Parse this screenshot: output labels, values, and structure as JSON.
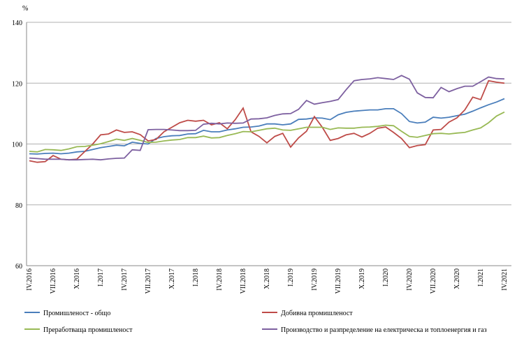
{
  "chart_data": {
    "type": "line",
    "y_label": "%",
    "categories": [
      "IV.2016",
      null,
      null,
      "VII.2016",
      null,
      null,
      "X.2016",
      null,
      null,
      "I.2017",
      null,
      null,
      "IV.2017",
      null,
      null,
      "VII.2017",
      null,
      null,
      "X.2017",
      null,
      null,
      "I.2018",
      null,
      null,
      "IV.2018",
      null,
      null,
      "VII.2018",
      null,
      null,
      "X.2018",
      null,
      null,
      "I.2019",
      null,
      null,
      "IV.2019",
      null,
      null,
      "VII.2019",
      null,
      null,
      "X.2019",
      null,
      null,
      "I.2020",
      null,
      null,
      "IV.2020",
      null,
      null,
      "VII.2020",
      null,
      null,
      "X.2020",
      null,
      null,
      "I.2021",
      null,
      null,
      "IV.2021"
    ],
    "series": [
      {
        "name": "Промишленост - общо",
        "color": "#4a7ebb",
        "values": [
          96.8,
          96.7,
          96.9,
          97.0,
          96.8,
          97.0,
          97.4,
          97.6,
          98.2,
          98.8,
          99.2,
          99.6,
          99.4,
          100.6,
          100.2,
          100.0,
          101.8,
          102.4,
          102.7,
          102.8,
          103.3,
          103.4,
          104.5,
          104.0,
          104.0,
          104.6,
          105.0,
          105.5,
          105.6,
          105.9,
          106.6,
          106.6,
          106.3,
          106.6,
          108.1,
          108.2,
          108.6,
          108.5,
          108.0,
          109.6,
          110.4,
          110.8,
          111.0,
          111.2,
          111.2,
          111.6,
          111.6,
          110.0,
          107.4,
          106.9,
          107.2,
          108.8,
          108.5,
          108.8,
          109.3,
          109.8,
          110.8,
          111.9,
          112.9,
          113.8,
          114.9
        ]
      },
      {
        "name": "Добивна промишленост",
        "color": "#be4b48",
        "values": [
          94.5,
          94.0,
          94.2,
          96.2,
          95.0,
          94.8,
          95.0,
          97.5,
          100.0,
          103.0,
          103.3,
          104.6,
          103.8,
          104.0,
          103.1,
          101.0,
          101.5,
          104.0,
          105.5,
          107.0,
          107.8,
          107.5,
          107.8,
          106.3,
          107.0,
          105.0,
          108.0,
          111.8,
          104.0,
          102.5,
          100.4,
          102.5,
          103.5,
          99.0,
          102.0,
          104.2,
          109.0,
          105.5,
          101.2,
          101.8,
          103.0,
          103.5,
          102.3,
          103.5,
          105.2,
          105.6,
          103.8,
          101.8,
          98.8,
          99.5,
          99.8,
          104.6,
          104.8,
          107.2,
          108.6,
          111.2,
          115.4,
          114.6,
          120.8,
          120.3,
          120.0
        ]
      },
      {
        "name": "Преработваща промишленост",
        "color": "#98b954",
        "values": [
          97.6,
          97.4,
          98.2,
          98.1,
          97.9,
          98.4,
          99.1,
          99.2,
          99.6,
          100.1,
          100.8,
          101.6,
          101.2,
          101.8,
          101.2,
          100.5,
          100.6,
          101.0,
          101.3,
          101.5,
          102.1,
          102.1,
          102.6,
          102.0,
          102.1,
          102.8,
          103.4,
          104.1,
          104.0,
          104.5,
          105.0,
          105.2,
          104.6,
          104.5,
          105.0,
          105.5,
          105.5,
          105.5,
          104.8,
          105.3,
          105.2,
          105.2,
          105.5,
          105.6,
          105.8,
          106.2,
          106.0,
          104.2,
          102.5,
          102.2,
          102.8,
          103.4,
          103.5,
          103.3,
          103.6,
          103.8,
          104.6,
          105.3,
          107.0,
          109.2,
          110.5
        ]
      },
      {
        "name": "Производство и разпределение на електрическа и топлоенергия  и газ",
        "color": "#7d60a0",
        "values": [
          95.4,
          95.2,
          95.0,
          95.0,
          95.0,
          94.8,
          94.8,
          94.9,
          95.0,
          94.8,
          95.1,
          95.3,
          95.4,
          98.1,
          97.9,
          104.7,
          104.8,
          104.8,
          104.6,
          104.4,
          104.4,
          104.5,
          106.5,
          106.8,
          106.6,
          106.9,
          106.8,
          106.9,
          108.2,
          108.3,
          108.6,
          109.4,
          109.9,
          110.0,
          111.4,
          114.3,
          113.1,
          113.6,
          114.0,
          114.6,
          117.8,
          120.8,
          121.2,
          121.4,
          121.8,
          121.5,
          121.2,
          122.5,
          121.3,
          116.8,
          115.3,
          115.2,
          118.6,
          117.2,
          118.2,
          119.0,
          119.0,
          120.5,
          122.0,
          121.5,
          121.4
        ]
      }
    ],
    "ylim": [
      60,
      140
    ],
    "yticks": [
      60,
      80,
      100,
      120,
      140
    ],
    "grid": true
  }
}
